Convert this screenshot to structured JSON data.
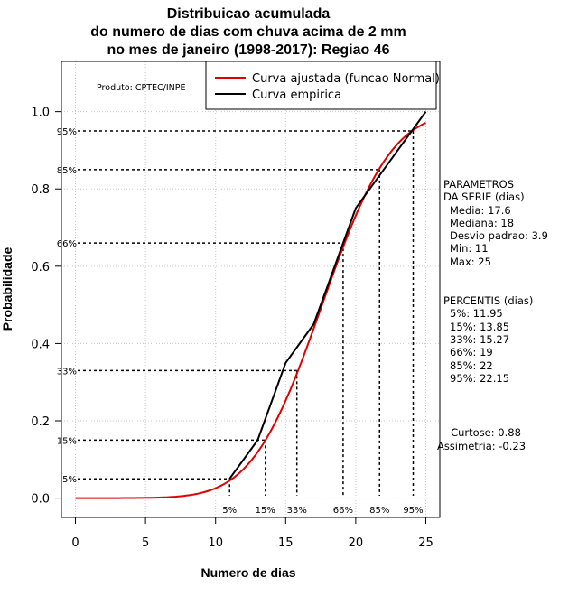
{
  "chart_data": {
    "type": "line",
    "title_lines": [
      "Distribuicao acumulada",
      "do numero de dias com chuva acima de 2 mm",
      "no mes de janeiro (1998-2017): Regiao 46"
    ],
    "xlabel": "Numero de dias",
    "ylabel": "Probabilidade",
    "xlim": [
      -1,
      26
    ],
    "ylim": [
      -0.05,
      1.13
    ],
    "xticks": [
      0,
      5,
      10,
      15,
      20,
      25
    ],
    "yticks": [
      0.0,
      0.2,
      0.4,
      0.6,
      0.8,
      1.0
    ],
    "ytick_labels": [
      "0.0",
      "0.2",
      "0.4",
      "0.6",
      "0.8",
      "1.0"
    ],
    "grid": true,
    "credit": "Produto: CPTEC/INPE",
    "legend": [
      {
        "label": "Curva ajustada (funcao Normal)",
        "color": "#e00000"
      },
      {
        "label": "Curva empirica",
        "color": "#000000"
      }
    ],
    "series": [
      {
        "name": "Curva empirica",
        "color": "#000000",
        "x": [
          11,
          13,
          15,
          17,
          18,
          19,
          20,
          21,
          22,
          23,
          24,
          25
        ],
        "y": [
          0.05,
          0.15,
          0.35,
          0.45,
          0.55,
          0.65,
          0.75,
          0.8,
          0.85,
          0.9,
          0.95,
          1.0
        ]
      },
      {
        "name": "Curva ajustada (funcao Normal)",
        "color": "#e00000",
        "mean": 17.6,
        "sd": 3.9,
        "x_range": [
          0,
          25
        ]
      }
    ],
    "percentile_markers": [
      {
        "label": "5%",
        "p": 0.05,
        "x": 11.0
      },
      {
        "label": "15%",
        "p": 0.15,
        "x": 13.55
      },
      {
        "label": "33%",
        "p": 0.33,
        "x": 15.8
      },
      {
        "label": "66%",
        "p": 0.66,
        "x": 19.1
      },
      {
        "label": "85%",
        "p": 0.85,
        "x": 21.7
      },
      {
        "label": "95%",
        "p": 0.95,
        "x": 24.1
      }
    ]
  },
  "parametros": {
    "heading_lines": [
      "PARAMETROS",
      "DA SERIE (dias)"
    ],
    "items": [
      "Media: 17.6",
      "Mediana: 18",
      "Desvio padrao: 3.9",
      "Min: 11",
      "Max: 25"
    ]
  },
  "percentis": {
    "heading": "PERCENTIS (dias)",
    "items": [
      "5%: 11.95",
      "15%: 13.85",
      "33%: 15.27",
      "66%: 19",
      "85%: 22",
      "95%: 22.15"
    ]
  },
  "shape": {
    "curtose": "Curtose: 0.88",
    "assimetria": "Assimetria: -0.23"
  }
}
